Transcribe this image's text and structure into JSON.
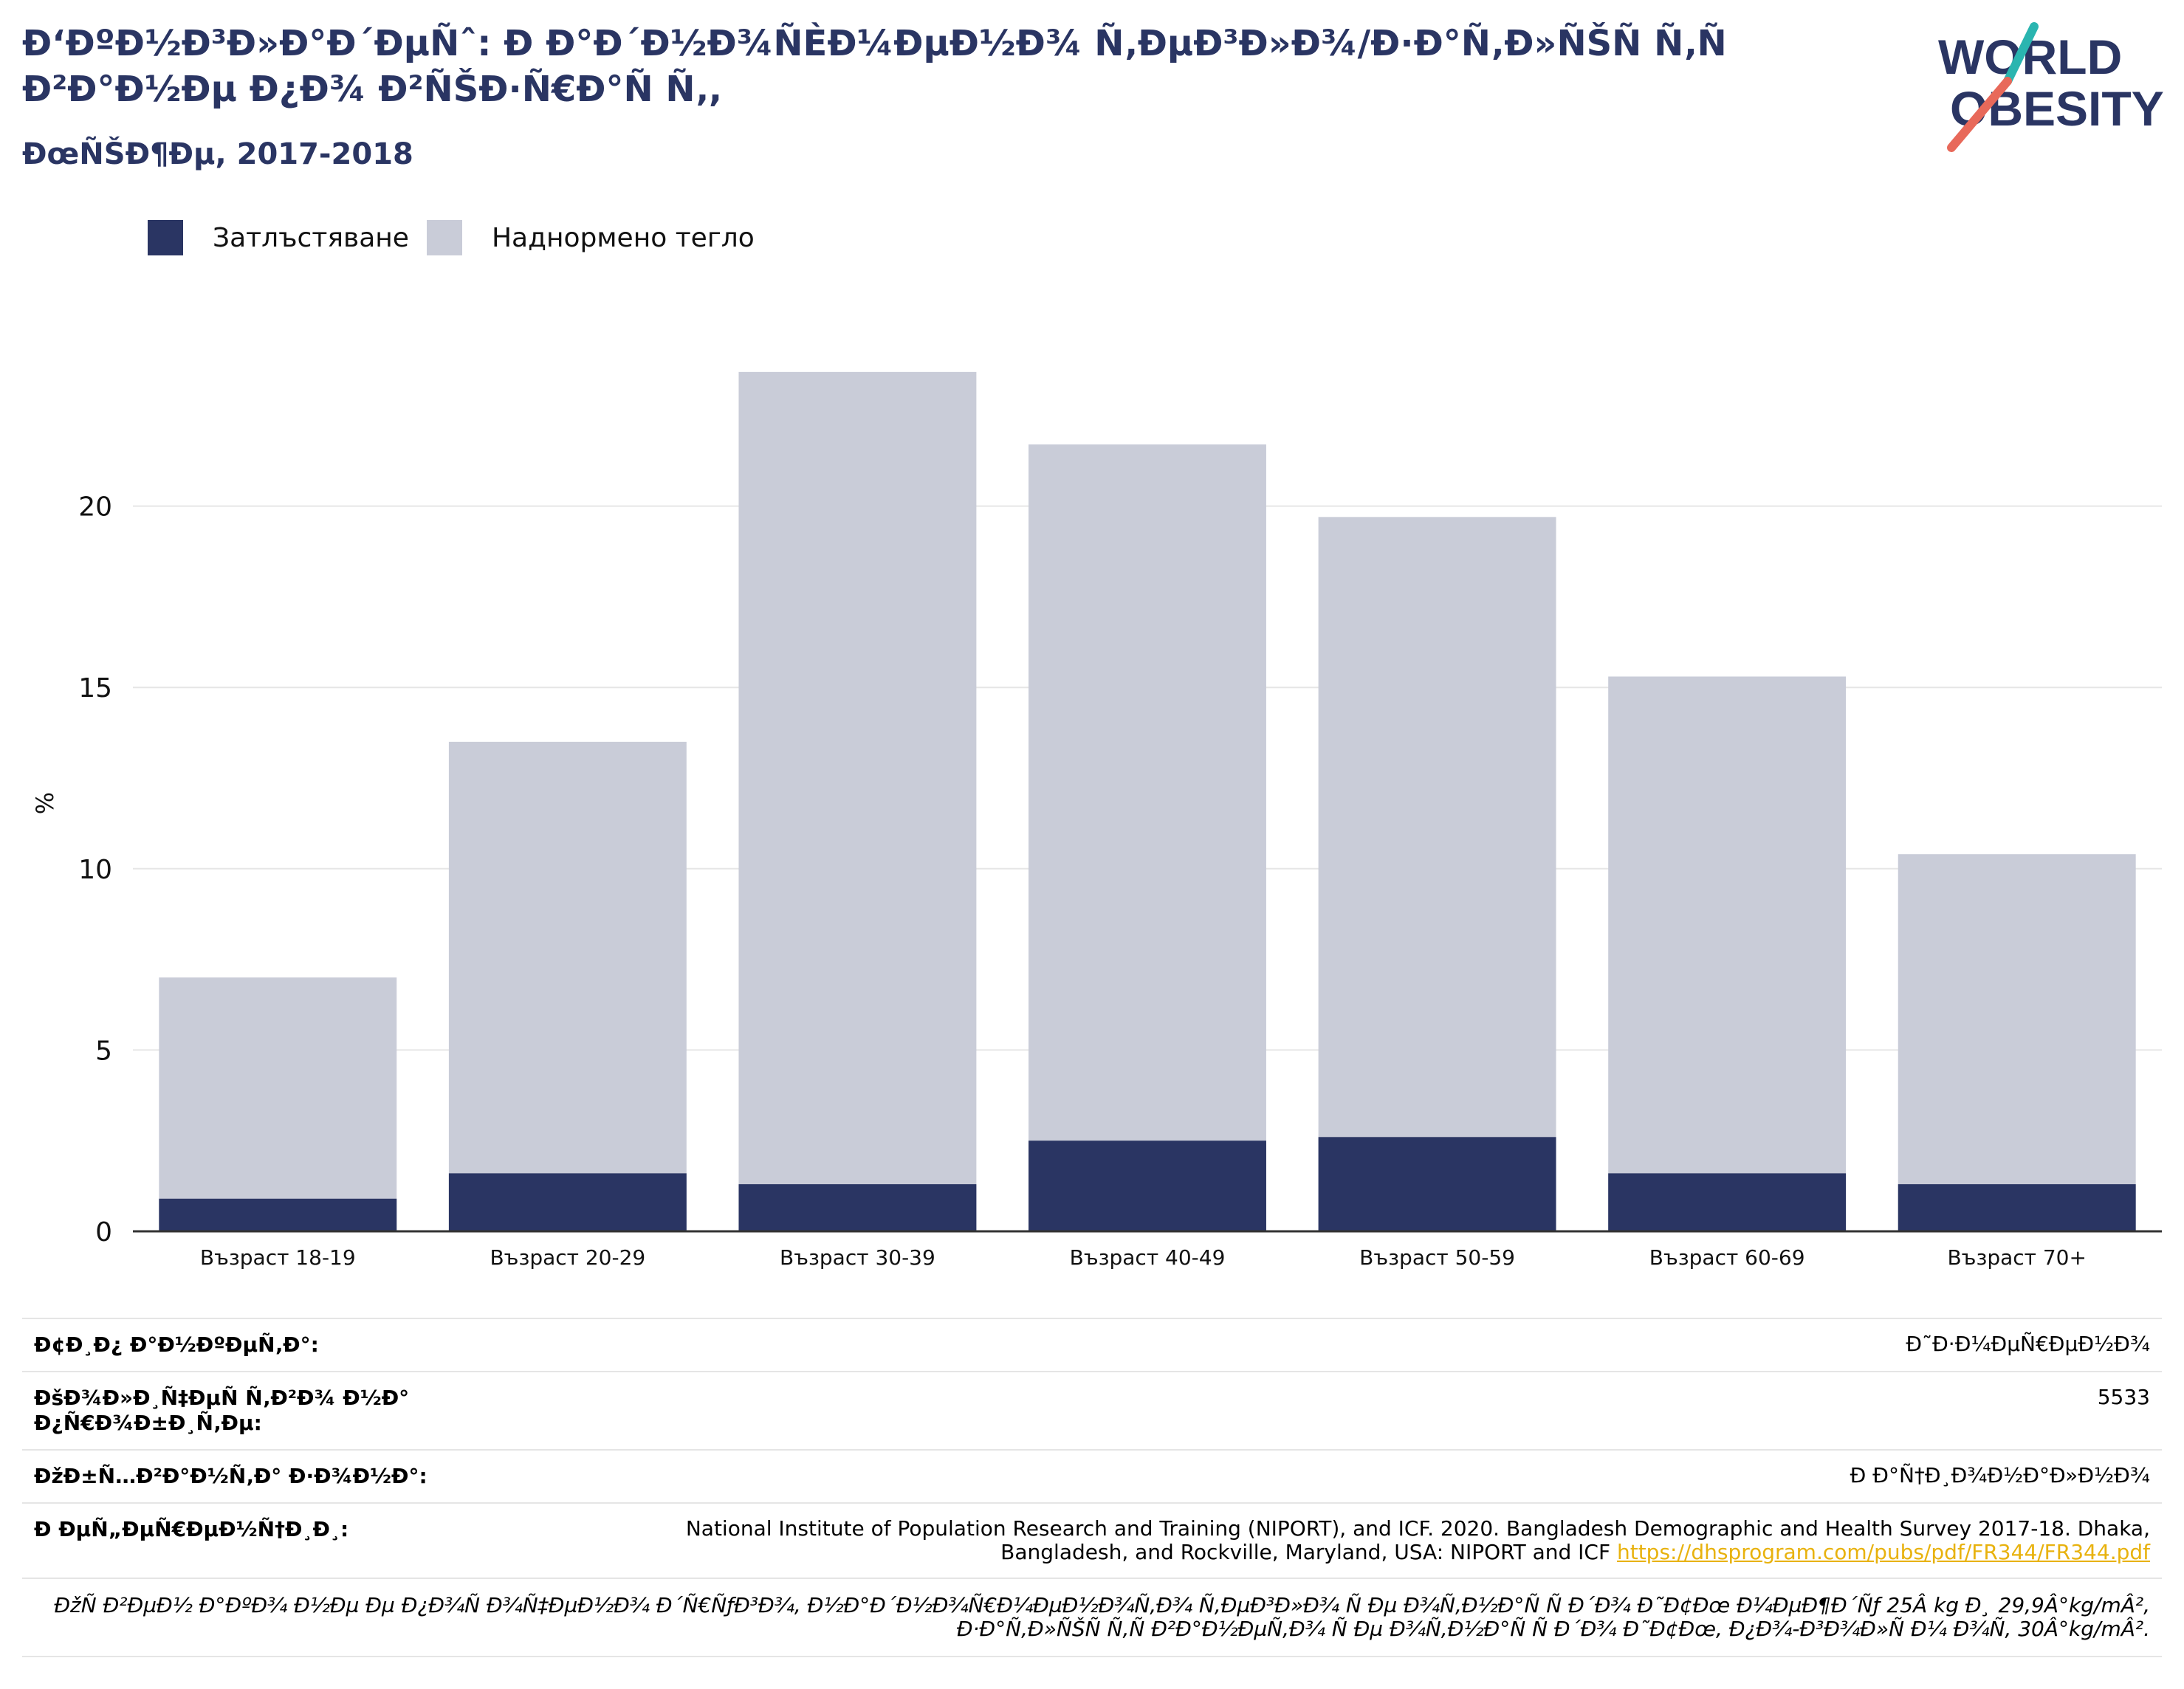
{
  "header": {
    "title": "Ð‘ÐºÐ½Ð³Ð»Ð°Ð´ÐµÑˆ: Ð  Ð°Ð´Ð½Ð¾ÑЀÐ¼ÐµÐ½Ð¾ Ñ‚ÐµÐ³Ð»Ð¾/Ð·Ð°Ñ‚Ð»ÑŠÑ Ñ‚Ñ Ð²Ð°Ð½Ðµ Ð¿Ð¾ Ð²ÑŠÐ·Ñ€Ð°Ñ Ñ‚,",
    "subtitle": "ÐœÑŠÐ¶Ðµ, 2017-2018"
  },
  "logo": {
    "line1": "WORLD",
    "line2": "OBESITY",
    "accent_teal": "#2ab5b0",
    "accent_coral": "#e8695a",
    "color": "#2a3563"
  },
  "legend": [
    {
      "label": "Затлъстяване",
      "color": "#2a3563"
    },
    {
      "label": "Наднормено тегло",
      "color": "#c9ccd8"
    }
  ],
  "chart_data": {
    "type": "bar",
    "stacked": false,
    "overlapping": true,
    "categories": [
      "Възраст 18-19",
      "Възраст 20-29",
      "Възраст 30-39",
      "Възраст 40-49",
      "Възраст 50-59",
      "Възраст 60-69",
      "Възраст 70+"
    ],
    "series": [
      {
        "name": "Наднормено тегло",
        "color": "#c9ccd8",
        "values": [
          7.0,
          13.5,
          23.7,
          21.7,
          19.7,
          15.3,
          10.4
        ]
      },
      {
        "name": "Затлъстяване",
        "color": "#2a3563",
        "values": [
          0.9,
          1.6,
          1.3,
          2.5,
          2.6,
          1.6,
          1.3
        ]
      }
    ],
    "ylabel": "%",
    "xlabel": "",
    "ylim": [
      0,
      25
    ],
    "yticks": [
      0,
      5,
      10,
      15,
      20
    ],
    "grid": true,
    "legend_position": "top-left"
  },
  "info": [
    {
      "key": "Ð¢Ð¸Ð¿ Ð°Ð½ÐºÐµÑ‚Ð°:",
      "value": "Ð˜Ð·Ð¼ÐµÑ€ÐµÐ½Ð¾"
    },
    {
      "key": "ÐšÐ¾Ð»Ð¸Ñ‡ÐµÑ Ñ‚Ð²Ð¾ Ð½Ð° Ð¿Ñ€Ð¾Ð±Ð¸Ñ‚Ðµ:",
      "value": "5533"
    },
    {
      "key": "ÐžÐ±Ñ…Ð²Ð°Ð½Ñ‚Ð° Ð·Ð¾Ð½Ð°:",
      "value": "Ð  Ð°Ñ†Ð¸Ð¾Ð½Ð°Ð»Ð½Ð¾"
    },
    {
      "key": "Ð ÐµÑ„ÐµÑ€ÐµÐ½Ñ†Ð¸Ð¸:",
      "value": "National Institute of Population Research and Training (NIPORT), and ICF. 2020. Bangladesh Demographic and Health Survey 2017-18. Dhaka, Bangladesh, and Rockville, Maryland, USA: NIPORT and ICF",
      "link": "https://dhsprogram.com/pubs/pdf/FR344/FR344.pdf"
    }
  ],
  "footnote": "ÐžÑ Ð²ÐµÐ½ Ð°ÐºÐ¾ Ð½Ðµ Ðµ Ð¿Ð¾Ñ Ð¾Ñ‡ÐµÐ½Ð¾ Ð´Ñ€ÑƒÐ³Ð¾, Ð½Ð°Ð´Ð½Ð¾Ñ€Ð¼ÐµÐ½Ð¾Ñ‚Ð¾ Ñ‚ÐµÐ³Ð»Ð¾ Ñ Ðµ Ð¾Ñ‚Ð½Ð°Ñ Ñ  Ð´Ð¾ Ð˜Ð¢Ðœ Ð¼ÐµÐ¶Ð´Ñƒ 25Â kg Ð¸ 29,9Â°kg/mÂ², Ð·Ð°Ñ‚Ð»ÑŠÑ Ñ‚Ñ Ð²Ð°Ð½ÐµÑ‚Ð¾ Ñ Ðµ Ð¾Ñ‚Ð½Ð°Ñ Ñ  Ð´Ð¾ Ð˜Ð¢Ðœ, Ð¿Ð¾-Ð³Ð¾Ð»Ñ Ð¼ Ð¾Ñ‚ 30Â°kg/mÂ²."
}
